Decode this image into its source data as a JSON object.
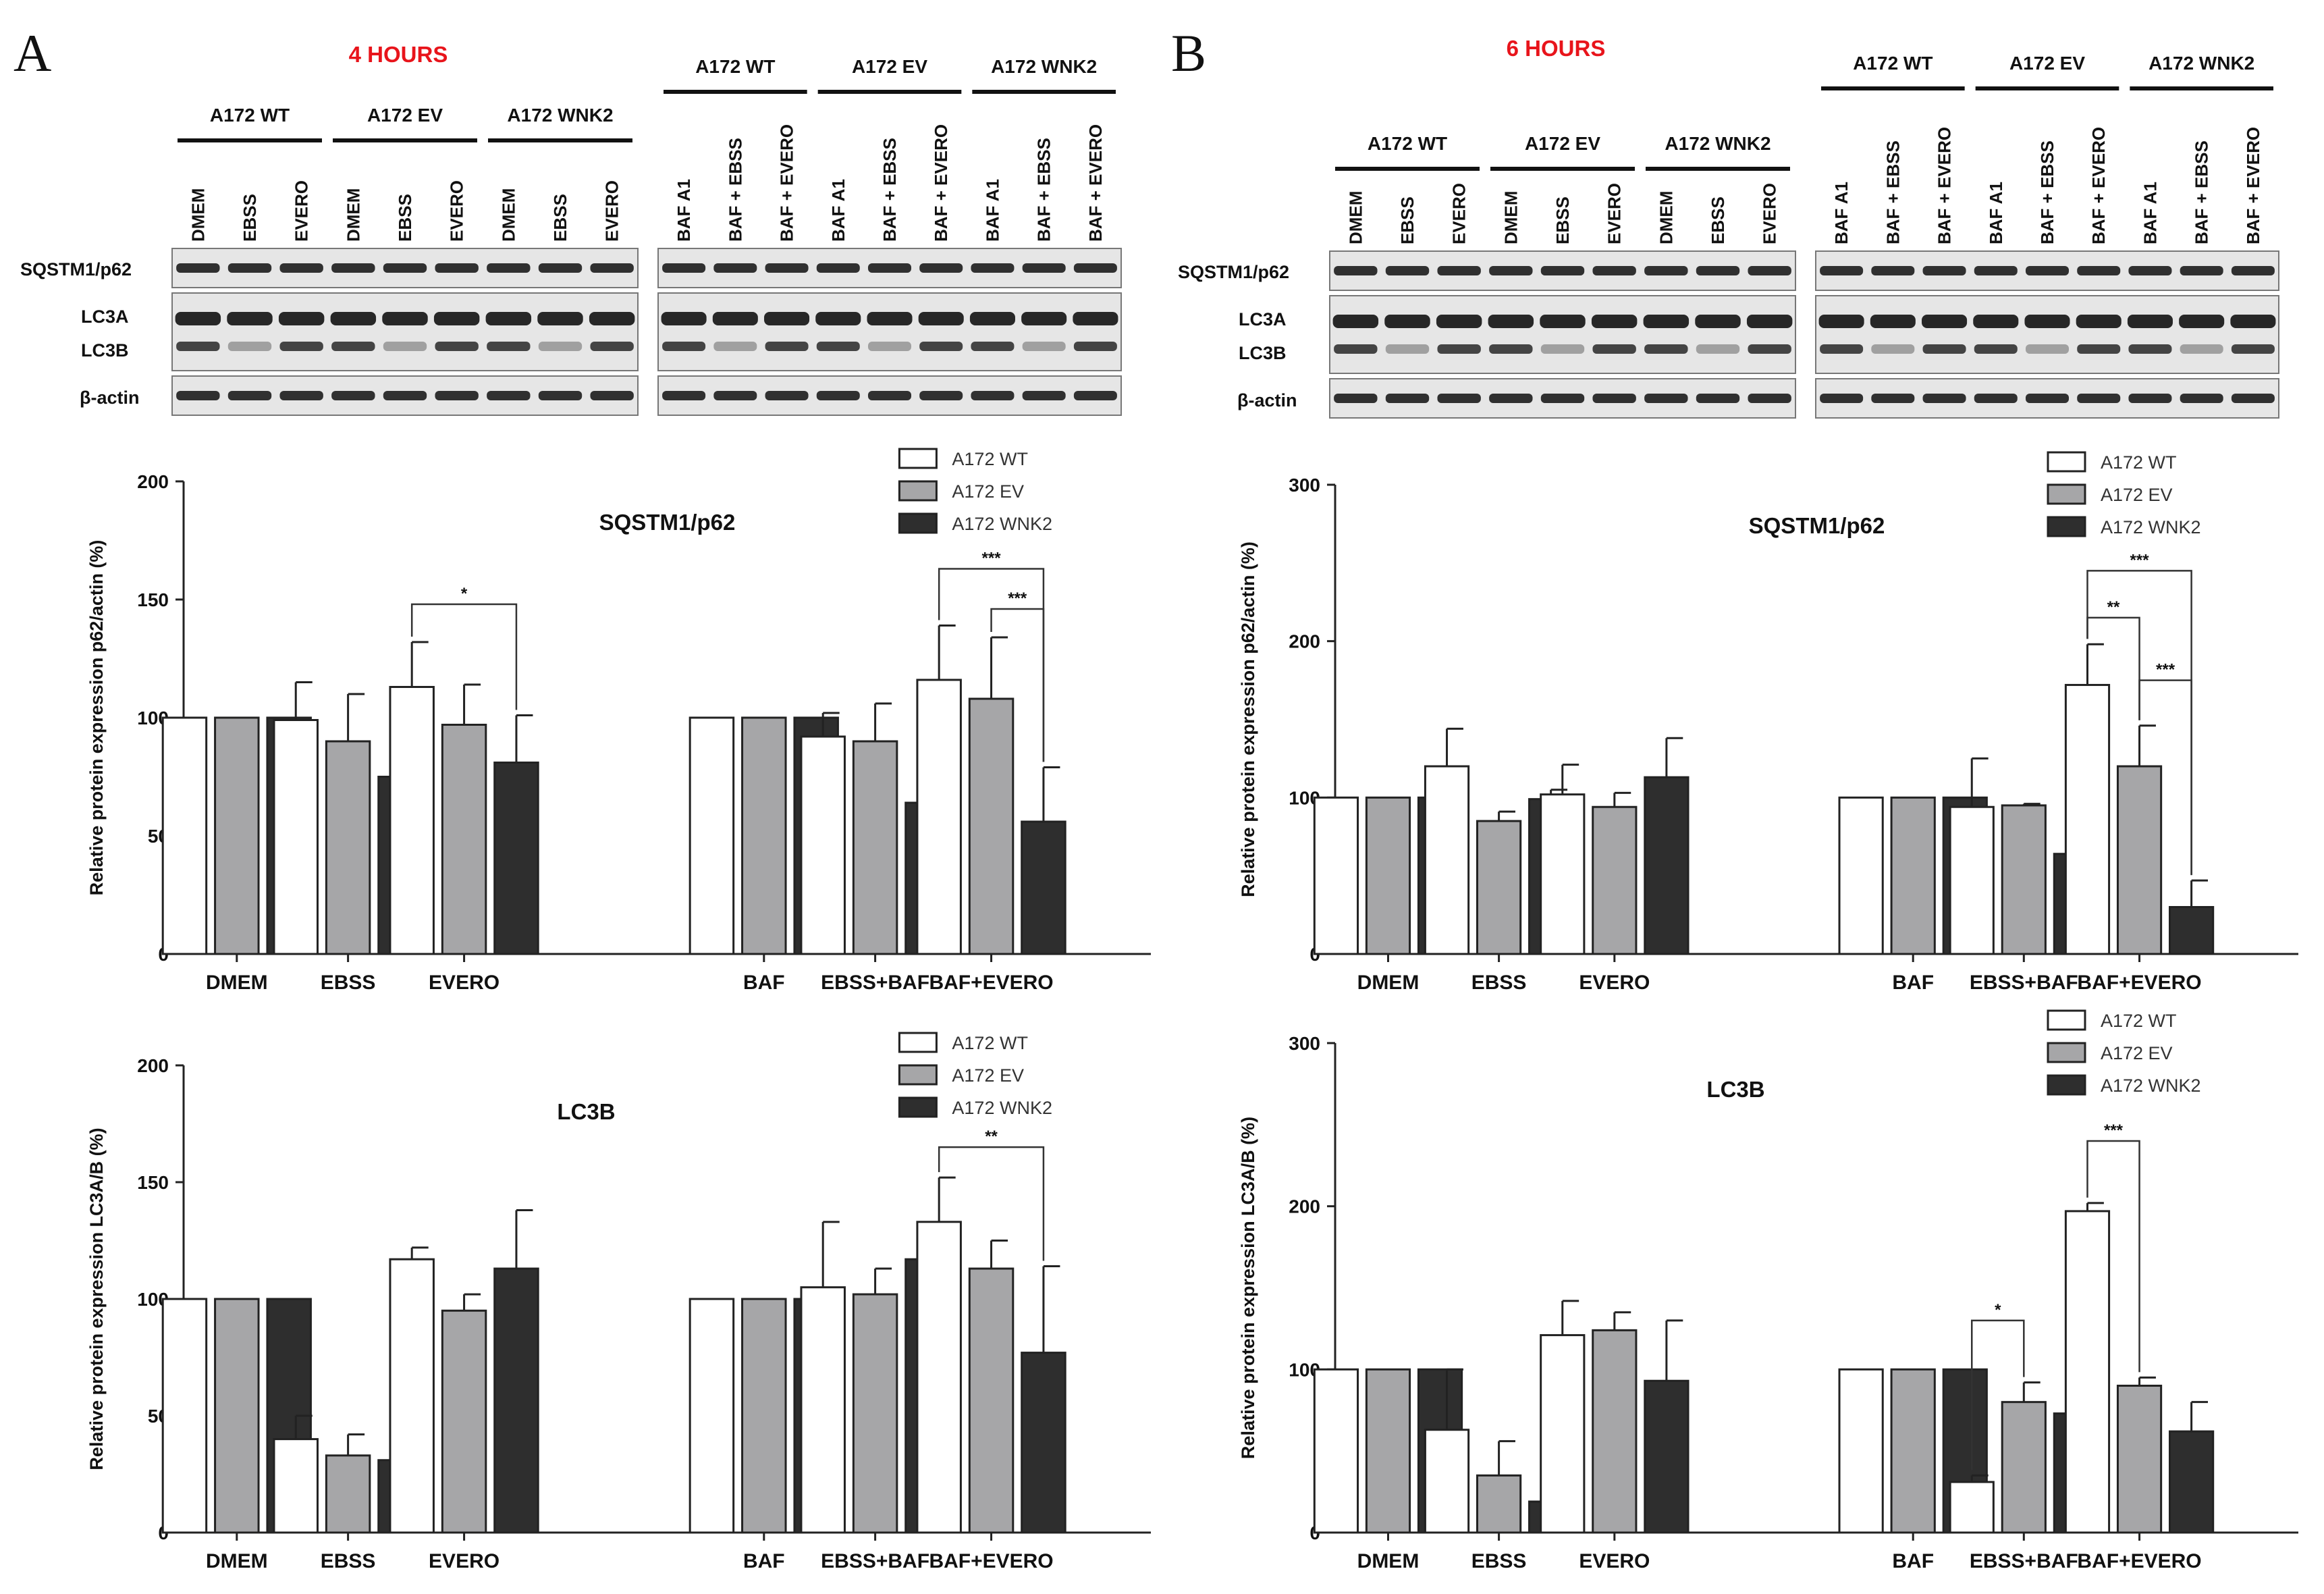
{
  "colors": {
    "wt": "#ffffff",
    "ev": "#a6a6a8",
    "wnk2": "#2e2e2e",
    "title_red": "#e8141b",
    "stroke": "#222222",
    "blot_bg": "#e6e6e6",
    "band": "#1c1c1c"
  },
  "legend": [
    "A172 WT",
    "A172 EV",
    "A172 WNK2"
  ],
  "panels": [
    {
      "letter": "A",
      "time_label": "4 HOURS",
      "groups_left": [
        "A172  WT",
        "A172  EV",
        "A172  WNK2"
      ],
      "groups_right": [
        "A172  WT",
        "A172  EV",
        "A172  WNK2"
      ],
      "lanes_left": [
        "DMEM",
        "EBSS",
        "EVERO",
        "DMEM",
        "EBSS",
        "EVERO",
        "DMEM",
        "EBSS",
        "EVERO"
      ],
      "lanes_right": [
        "BAF A1",
        "BAF + EBSS",
        "BAF + EVERO",
        "BAF A1",
        "BAF + EBSS",
        "BAF + EVERO",
        "BAF A1",
        "BAF + EBSS",
        "BAF + EVERO"
      ],
      "blot_labels": [
        "SQSTM1/p62",
        "LC3A",
        "LC3B",
        "β-actin"
      ]
    },
    {
      "letter": "B",
      "time_label": "6 HOURS",
      "groups_left": [
        "A172  WT",
        "A172  EV",
        "A172  WNK2"
      ],
      "groups_right": [
        "A172  WT",
        "A172  EV",
        "A172  WNK2"
      ],
      "lanes_left": [
        "DMEM",
        "EBSS",
        "EVERO",
        "DMEM",
        "EBSS",
        "EVERO",
        "DMEM",
        "EBSS",
        "EVERO"
      ],
      "lanes_right": [
        "BAF A1",
        "BAF + EBSS",
        "BAF + EVERO",
        "BAF A1",
        "BAF + EBSS",
        "BAF + EVERO",
        "BAF A1",
        "BAF + EBSS",
        "BAF + EVERO"
      ],
      "blot_labels": [
        "SQSTM1/p62",
        "LC3A",
        "LC3B",
        "β-actin"
      ]
    }
  ],
  "chart_data": [
    {
      "id": "A-p62",
      "type": "bar",
      "title": "SQSTM1/p62",
      "ylabel": "Relative protein expression p62/actin (%)",
      "ylim": [
        0,
        200
      ],
      "yticks": [
        0,
        50,
        100,
        150,
        200
      ],
      "categories": [
        "DMEM",
        "EBSS",
        "EVERO",
        "BAF",
        "EBSS+BAF",
        "BAF+EVERO"
      ],
      "series": [
        {
          "name": "A172 WT",
          "values": [
            100,
            99,
            113,
            100,
            92,
            116
          ],
          "errors": [
            0,
            16,
            19,
            0,
            10,
            23
          ]
        },
        {
          "name": "A172 EV",
          "values": [
            100,
            90,
            97,
            100,
            90,
            108
          ],
          "errors": [
            0,
            20,
            17,
            0,
            16,
            26
          ]
        },
        {
          "name": "A172 WNK2",
          "values": [
            100,
            75,
            81,
            100,
            64,
            56
          ],
          "errors": [
            0,
            2,
            20,
            0,
            23,
            23
          ]
        }
      ],
      "significance": [
        {
          "label": "*",
          "category": "EVERO",
          "from": "A172 WT",
          "to": "A172 WNK2",
          "y": 148
        },
        {
          "label": "***",
          "category": "BAF+EVERO",
          "from": "A172 WT",
          "to": "A172 WNK2",
          "y": 163
        },
        {
          "label": "***",
          "category": "BAF+EVERO",
          "from": "A172 EV",
          "to": "A172 WNK2",
          "y": 146
        }
      ]
    },
    {
      "id": "A-lc3b",
      "type": "bar",
      "title": "LC3B",
      "ylabel": "Relative protein expression LC3A/B (%)",
      "ylim": [
        0,
        200
      ],
      "yticks": [
        0,
        50,
        100,
        150,
        200
      ],
      "categories": [
        "DMEM",
        "EBSS",
        "EVERO",
        "BAF",
        "EBSS+BAF",
        "BAF+EVERO"
      ],
      "series": [
        {
          "name": "A172 WT",
          "values": [
            100,
            40,
            117,
            100,
            105,
            133
          ],
          "errors": [
            0,
            10,
            5,
            0,
            28,
            19
          ]
        },
        {
          "name": "A172 EV",
          "values": [
            100,
            33,
            95,
            100,
            102,
            113
          ],
          "errors": [
            0,
            9,
            7,
            0,
            11,
            12
          ]
        },
        {
          "name": "A172 WNK2",
          "values": [
            100,
            31,
            113,
            100,
            117,
            77
          ],
          "errors": [
            0,
            6,
            25,
            0,
            14,
            37
          ]
        }
      ],
      "significance": [
        {
          "label": "**",
          "category": "BAF+EVERO",
          "from": "A172 WT",
          "to": "A172 WNK2",
          "y": 165
        }
      ]
    },
    {
      "id": "B-p62",
      "type": "bar",
      "title": "SQSTM1/p62",
      "ylabel": "Relative protein expression p62/actin (%)",
      "ylim": [
        0,
        300
      ],
      "yticks": [
        0,
        100,
        200,
        300
      ],
      "categories": [
        "DMEM",
        "EBSS",
        "EVERO",
        "BAF",
        "EBSS+BAF",
        "BAF+EVERO"
      ],
      "series": [
        {
          "name": "A172 WT",
          "values": [
            100,
            120,
            102,
            100,
            94,
            172
          ],
          "errors": [
            0,
            24,
            19,
            0,
            31,
            26
          ]
        },
        {
          "name": "A172 EV",
          "values": [
            100,
            85,
            94,
            100,
            95,
            120
          ],
          "errors": [
            0,
            6,
            9,
            0,
            1,
            26
          ]
        },
        {
          "name": "A172 WNK2",
          "values": [
            100,
            99,
            113,
            100,
            64,
            30
          ],
          "errors": [
            0,
            6,
            25,
            0,
            15,
            17
          ]
        }
      ],
      "significance": [
        {
          "label": "***",
          "category": "BAF+EVERO",
          "from": "A172 WT",
          "to": "A172 WNK2",
          "y": 245
        },
        {
          "label": "**",
          "category": "BAF+EVERO",
          "from": "A172 WT",
          "to": "A172 EV",
          "y": 215
        },
        {
          "label": "***",
          "category": "BAF+EVERO",
          "from": "A172 EV",
          "to": "A172 WNK2",
          "y": 175
        }
      ]
    },
    {
      "id": "B-lc3b",
      "type": "bar",
      "title": "LC3B",
      "ylabel": "Relative protein expression LC3A/B (%)",
      "ylim": [
        0,
        300
      ],
      "yticks": [
        0,
        100,
        200,
        300
      ],
      "categories": [
        "DMEM",
        "EBSS",
        "EVERO",
        "BAF",
        "EBSS+BAF",
        "BAF+EVERO"
      ],
      "series": [
        {
          "name": "A172 WT",
          "values": [
            100,
            63,
            121,
            100,
            31,
            197
          ],
          "errors": [
            0,
            37,
            21,
            0,
            4,
            5
          ]
        },
        {
          "name": "A172 EV",
          "values": [
            100,
            35,
            124,
            100,
            80,
            90
          ],
          "errors": [
            0,
            21,
            11,
            0,
            12,
            5
          ]
        },
        {
          "name": "A172 WNK2",
          "values": [
            100,
            19,
            93,
            100,
            73,
            62
          ],
          "errors": [
            0,
            12,
            37,
            0,
            37,
            18
          ]
        }
      ],
      "significance": [
        {
          "label": "*",
          "category": "EBSS+BAF",
          "from": "A172 WT",
          "to": "A172 EV",
          "y": 130
        },
        {
          "label": "***",
          "category": "BAF+EVERO",
          "from": "A172 WT",
          "to": "A172 EV",
          "y": 240
        }
      ]
    }
  ]
}
